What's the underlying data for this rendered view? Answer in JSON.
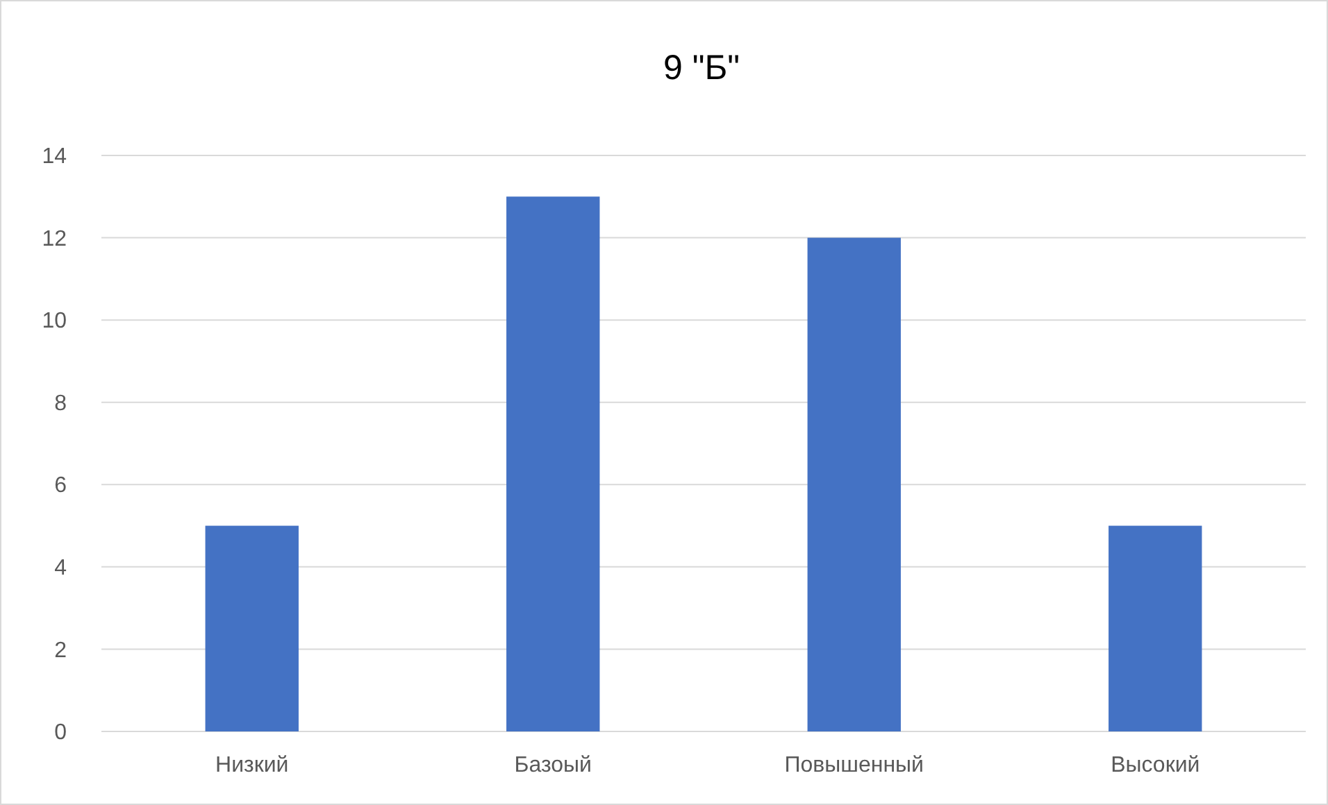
{
  "chart_data": {
    "type": "bar",
    "title": "9 \"Б\"",
    "categories": [
      "Низкий",
      "Базоый",
      "Повышенный",
      "Высокий"
    ],
    "values": [
      5,
      13,
      12,
      5
    ],
    "color": "#4472c4",
    "ylim": [
      0,
      14
    ],
    "yticks": [
      0,
      2,
      4,
      6,
      8,
      10,
      12,
      14
    ],
    "grid": "y"
  }
}
